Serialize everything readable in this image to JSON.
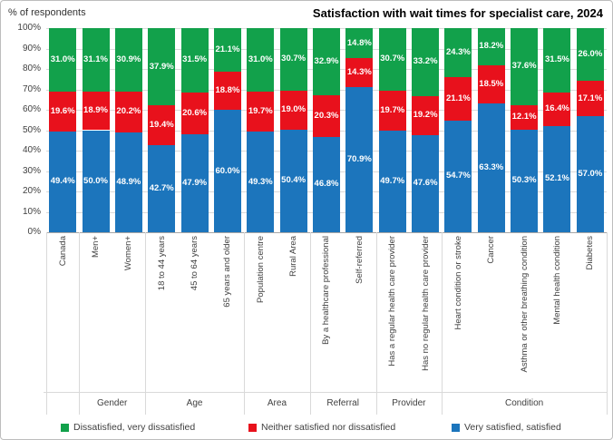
{
  "chart_data": {
    "type": "bar",
    "stacked": true,
    "title": "Satisfaction with wait times for specialist care, 2024",
    "ylabel": "% of respondents",
    "ylim": [
      0,
      100
    ],
    "grid": true,
    "legend_position": "bottom",
    "y_ticks_top_down": [
      "100%",
      "90%",
      "80%",
      "70%",
      "60%",
      "50%",
      "40%",
      "30%",
      "20%",
      "10%",
      "0%"
    ],
    "categories": [
      "Canada",
      "Men+",
      "Women+",
      "18 to 44 years",
      "45 to 64 years",
      "65 years and older",
      "Population centre",
      "Rural Area",
      "By a healthcare professional",
      "Self-referred",
      "Has a regular health care provider",
      "Has no regular health care provider",
      "Heart condition or stroke",
      "Cancer",
      "Asthma or other breathing condition",
      "Mental health condition",
      "Diabetes"
    ],
    "groups": [
      {
        "label": "",
        "count": 1
      },
      {
        "label": "Gender",
        "count": 2
      },
      {
        "label": "Age",
        "count": 3
      },
      {
        "label": "Area",
        "count": 2
      },
      {
        "label": "Referral",
        "count": 2
      },
      {
        "label": "Provider",
        "count": 2
      },
      {
        "label": "Condition",
        "count": 5
      }
    ],
    "series": [
      {
        "name": "Very satisfied, satisfied",
        "color": "#1C75BC",
        "values": [
          49.4,
          50.0,
          48.9,
          42.7,
          47.9,
          60.0,
          49.3,
          50.4,
          46.8,
          70.9,
          49.7,
          47.6,
          54.7,
          63.3,
          50.3,
          52.1,
          57.0
        ]
      },
      {
        "name": "Neither satisfied nor dissatisfied",
        "color": "#E8111C",
        "values": [
          19.6,
          18.9,
          20.2,
          19.4,
          20.6,
          18.8,
          19.7,
          19.0,
          20.3,
          14.3,
          19.7,
          19.2,
          21.1,
          18.5,
          12.1,
          16.4,
          17.1
        ]
      },
      {
        "name": "Dissatisfied, very dissatisfied",
        "color": "#12A14B",
        "values": [
          31.0,
          31.1,
          30.9,
          37.9,
          31.5,
          21.1,
          31.0,
          30.7,
          32.9,
          14.8,
          30.7,
          33.2,
          24.3,
          18.2,
          37.6,
          31.5,
          26.0
        ]
      }
    ],
    "legend": [
      {
        "label": "Dissatisfied, very dissatisfied",
        "color": "#12A14B"
      },
      {
        "label": "Neither satisfied nor dissatisfied",
        "color": "#E8111C"
      },
      {
        "label": "Very satisfied, satisfied",
        "color": "#1C75BC"
      }
    ]
  }
}
